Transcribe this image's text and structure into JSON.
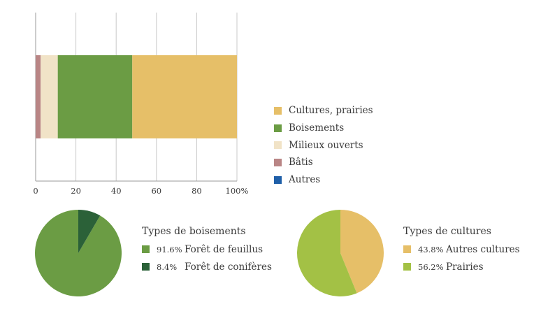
{
  "chart_data": [
    {
      "type": "bar",
      "orientation": "horizontal",
      "stacked": true,
      "xlim": [
        0,
        100
      ],
      "xticks": [
        "0",
        "20",
        "40",
        "60",
        "80",
        "100%"
      ],
      "grid": true,
      "legend_position": "right",
      "series": [
        {
          "name": "Autres",
          "color": "#1f5fa8",
          "values": [
            0
          ]
        },
        {
          "name": "Bâtis",
          "color": "#b98585",
          "values": [
            2.5
          ]
        },
        {
          "name": "Milieux ouverts",
          "color": "#f1e3c7",
          "values": [
            8.5
          ]
        },
        {
          "name": "Boisements",
          "color": "#6b9c44",
          "values": [
            37
          ]
        },
        {
          "name": "Cultures, prairies",
          "color": "#e6bf68",
          "values": [
            52
          ]
        }
      ],
      "legend_order": [
        "Cultures, prairies",
        "Boisements",
        "Milieux ouverts",
        "Bâtis",
        "Autres"
      ]
    },
    {
      "type": "pie",
      "title": "Types de boisements",
      "slices": [
        {
          "label": "Forêt de feuillus",
          "value": 91.6,
          "pct_label": "91.6%",
          "color": "#6b9c44"
        },
        {
          "label": "Forêt de conifères",
          "value": 8.4,
          "pct_label": "8.4%",
          "color": "#2b6138"
        }
      ]
    },
    {
      "type": "pie",
      "title": "Types de cultures",
      "slices": [
        {
          "label": "Autres cultures",
          "value": 43.8,
          "pct_label": "43.8%",
          "color": "#e6bf68"
        },
        {
          "label": "Prairies",
          "value": 56.2,
          "pct_label": "56.2%",
          "color": "#a3c145"
        }
      ]
    }
  ]
}
